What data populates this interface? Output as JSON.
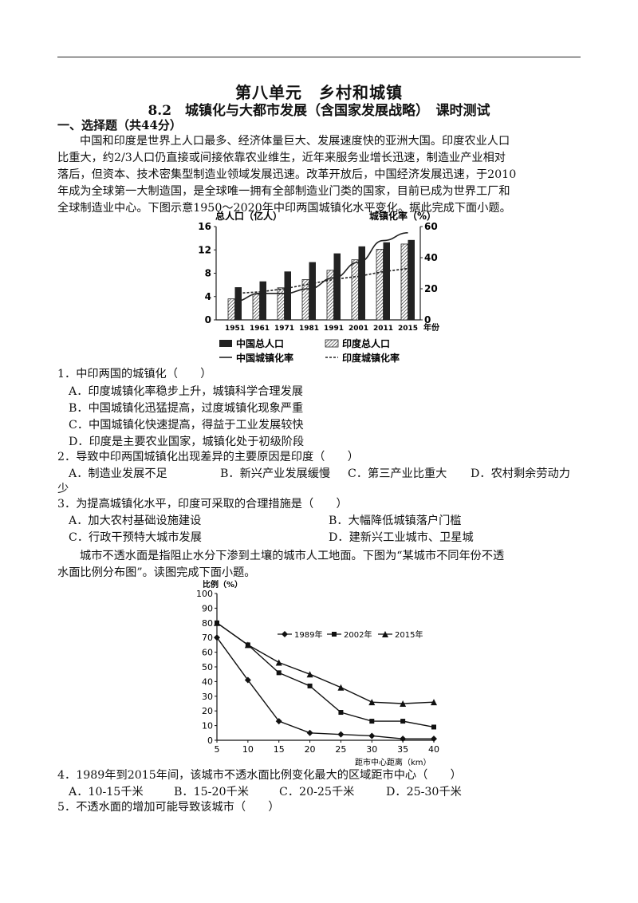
{
  "header": {
    "title": "第八单元　乡村和城镇",
    "subtitle": "8.2　城镇化与大都市发展（含国家发展战略）　课时测试"
  },
  "section1": {
    "title": "一、选择题（共44分）"
  },
  "passage1": [
    "中国和印度是世界上人口最多、经济体量巨大、发展速度快的亚洲大国。印度农业人口",
    "比重大，约2/3人口仍直接或间接依靠农业维生，近年来服务业增长迅速，制造业产业相对",
    "落后，但资本、技术密集型制造业领域发展迅速。改革开放后，中国经济发展迅速，于2010",
    "年成为全球第一大制造国，是全球唯一拥有全部制造业门类的国家，目前已成为世界工厂和",
    "全球制造业中心。下图示意1950～2020年中印两国城镇化水平变化。据此完成下面小题。"
  ],
  "chart1": {
    "left_axis_title": "总人口（亿人）",
    "right_axis_title": "城镇化率（%）",
    "x_unit": "年份",
    "legend": {
      "china_pop": "中国总人口",
      "india_pop": "印度总人口",
      "china_urban": "中国城镇化率",
      "india_urban": "印度城镇化率"
    }
  },
  "chart2": {
    "y_title": "比例（%）",
    "x_title": "距市中心距离（km）",
    "legend": [
      "1989年",
      "2002年",
      "2015年"
    ]
  },
  "chart_data": [
    {
      "type": "bar",
      "categories": [
        "1951",
        "1961",
        "1971",
        "1981",
        "1991",
        "2001",
        "2011",
        "2015"
      ],
      "ylim": [
        0,
        16
      ],
      "yticks": [
        "0",
        "4",
        "8",
        "12",
        "16"
      ],
      "y2lim": [
        0,
        60
      ],
      "y2ticks": [
        "0",
        "20",
        "40",
        "60"
      ],
      "series": [
        {
          "name": "中国总人口",
          "axis": "left",
          "kind": "bar",
          "values": [
            5.6,
            6.6,
            8.3,
            9.9,
            11.4,
            12.6,
            13.3,
            13.7
          ]
        },
        {
          "name": "印度总人口",
          "axis": "left",
          "kind": "bar",
          "values": [
            3.6,
            4.4,
            5.5,
            6.9,
            8.5,
            10.3,
            12.1,
            13.0
          ]
        },
        {
          "name": "中国城镇化率",
          "axis": "right",
          "kind": "line",
          "values": [
            12,
            17,
            17,
            20,
            27,
            37,
            51,
            56
          ]
        },
        {
          "name": "印度城镇化率",
          "axis": "right",
          "kind": "line",
          "values": [
            17,
            18,
            20,
            23,
            26,
            28,
            31,
            33
          ]
        }
      ]
    },
    {
      "type": "line",
      "x": [
        5,
        10,
        15,
        20,
        25,
        30,
        35,
        40
      ],
      "xticks": [
        "5",
        "10",
        "15",
        "20",
        "25",
        "30",
        "35",
        "40"
      ],
      "ylim": [
        0,
        100
      ],
      "yticks": [
        "0",
        "10",
        "20",
        "30",
        "40",
        "50",
        "60",
        "70",
        "80",
        "90",
        "100"
      ],
      "xlim": [
        5,
        40
      ],
      "series": [
        {
          "name": "1989年",
          "marker": "diamond",
          "values": [
            70,
            41,
            13,
            5,
            4,
            3,
            1,
            1
          ]
        },
        {
          "name": "2002年",
          "marker": "square",
          "values": [
            80,
            65,
            46,
            37,
            19,
            13,
            13,
            9
          ]
        },
        {
          "name": "2015年",
          "marker": "triangle",
          "values": [
            80,
            65,
            53,
            45,
            36,
            26,
            25,
            26
          ]
        }
      ]
    }
  ],
  "questions": {
    "q1": {
      "stem": "1．中印两国的城镇化（　　）",
      "a": "A．印度城镇化率稳步上升，城镇科学合理发展",
      "b": "B．中国城镇化迅猛提高，过度城镇化现象严重",
      "c": "C．中国城镇化快速提高，得益于工业发展较快",
      "d": "D．印度是主要农业国家，城镇化处于初级阶段"
    },
    "q2": {
      "stem": "2．导致中印两国城镇化出现差异的主要原因是印度（　　）",
      "a": "A．制造业发展不足",
      "b": "B．新兴产业发展缓慢",
      "c": "C．第三产业比重大",
      "d": "D．农村剩余劳动力",
      "d_cont": "少"
    },
    "q3": {
      "stem": "3．为提高城镇化水平，印度可采取的合理措施是（　　）",
      "a": "A．加大农村基础设施建设",
      "b": "B．大幅降低城镇落户门槛",
      "c": "C．行政干预特大城市发展",
      "d": "D．建新兴工业城市、卫星城"
    },
    "q4": {
      "stem": "4．1989年到2015年间，该城市不透水面比例变化最大的区域距市中心（　　）",
      "a": "A．10-15千米",
      "b": "B．15-20千米",
      "c": "C．20-25千米",
      "d": "D．25-30千米"
    },
    "q5": {
      "stem": "5．不透水面的增加可能导致该城市（　　）"
    }
  },
  "passage2": [
    "城市不透水面是指阻止水分下渗到土壤的城市人工地面。下图为“某城市不同年份不透",
    "水面比例分布图”。读图完成下面小题。"
  ]
}
